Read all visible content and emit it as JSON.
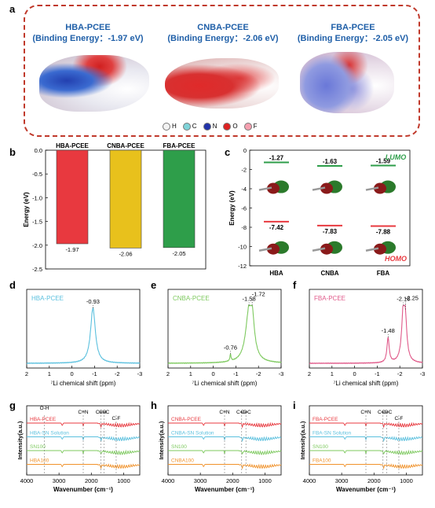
{
  "panels": {
    "a": "a",
    "b": "b",
    "c": "c",
    "d": "d",
    "e": "e",
    "f": "f",
    "g": "g",
    "h": "h",
    "i": "i"
  },
  "panel_a": {
    "molecules": [
      {
        "name": "HBA-PCEE",
        "energy": "(Binding Energy：-1.97 eV)"
      },
      {
        "name": "CNBA-PCEE",
        "energy": "(Binding Energy：-2.06 eV)"
      },
      {
        "name": "FBA-PCEE",
        "energy": "(Binding Energy：-2.05 eV)"
      }
    ],
    "legend": [
      {
        "label": "H",
        "color": "#f2f2f2"
      },
      {
        "label": "C",
        "color": "#7fd3d8"
      },
      {
        "label": "N",
        "color": "#2233aa"
      },
      {
        "label": "O",
        "color": "#dd2222"
      },
      {
        "label": "F",
        "color": "#f5a0b0"
      }
    ]
  },
  "chart_data": [
    {
      "panel": "b",
      "type": "bar",
      "categories": [
        "HBA-PCEE",
        "CNBA-PCEE",
        "FBA-PCEE"
      ],
      "values": [
        -1.97,
        -2.06,
        -2.05
      ],
      "value_labels": [
        "-1.97",
        "-2.06",
        "-2.05"
      ],
      "colors": [
        "#e8393f",
        "#e8c11c",
        "#2e9e4a"
      ],
      "ylabel": "Energy (eV)",
      "ylim": [
        -2.5,
        0
      ],
      "yticks": [
        0.0,
        -0.5,
        -1.0,
        -1.5,
        -2.0,
        -2.5
      ],
      "ytick_labels": [
        "0.0",
        "-0.5",
        "-1.0",
        "-1.5",
        "-2.0",
        "-2.5"
      ]
    },
    {
      "panel": "c",
      "type": "scatter",
      "categories": [
        "HBA",
        "CNBA",
        "FBA"
      ],
      "lumo": [
        -1.27,
        -1.63,
        -1.59
      ],
      "lumo_labels": [
        "-1.27",
        "-1.63",
        "-1.59"
      ],
      "homo": [
        -7.42,
        -7.83,
        -7.88
      ],
      "homo_labels": [
        "-7.42",
        "-7.83",
        "-7.88"
      ],
      "lumo_label": "LUMO",
      "homo_label": "HOMO",
      "lumo_color": "#2e9e4a",
      "homo_color": "#e8393f",
      "ylabel": "Energy (eV)",
      "ylim": [
        -12,
        0
      ],
      "yticks": [
        0,
        -2,
        -4,
        -6,
        -8,
        -10,
        -12
      ],
      "ytick_labels": [
        "0",
        "-2",
        "-4",
        "-6",
        "-8",
        "-10",
        "-12"
      ]
    },
    {
      "panel": "d",
      "type": "line",
      "series_label": "HBA-PCEE",
      "color": "#5bc0de",
      "xlim": [
        2,
        -3
      ],
      "xticks": [
        2,
        1,
        0,
        -1,
        -2,
        -3
      ],
      "xtick_labels": [
        "2",
        "1",
        "0",
        "-1",
        "-2",
        "-3"
      ],
      "xlabel": "⁷Li chemical shift (ppm)",
      "peaks": [
        {
          "x": -0.93,
          "h": 1.0,
          "w": 0.13
        }
      ],
      "annotations": [
        {
          "x": -0.93,
          "text": "-0.93"
        }
      ]
    },
    {
      "panel": "e",
      "type": "line",
      "series_label": "CNBA-PCEE",
      "color": "#7dc95e",
      "xlim": [
        2,
        -3
      ],
      "xticks": [
        2,
        1,
        0,
        -1,
        -2,
        -3
      ],
      "xtick_labels": [
        "2",
        "1",
        "0",
        "-1",
        "-2",
        "-3"
      ],
      "xlabel": "⁷Li chemical shift (ppm)",
      "peaks": [
        {
          "x": -1.58,
          "h": 0.85,
          "w": 0.18
        },
        {
          "x": -1.72,
          "h": 0.55,
          "w": 0.12
        },
        {
          "x": -0.76,
          "h": 0.12,
          "w": 0.03
        }
      ],
      "annotations": [
        {
          "x": -0.76,
          "text": "-0.76"
        },
        {
          "x": -1.58,
          "text": "-1.58"
        },
        {
          "x": -1.72,
          "text": "-1.72"
        }
      ]
    },
    {
      "panel": "f",
      "type": "line",
      "series_label": "FBA-PCEE",
      "color": "#e05a8a",
      "xlim": [
        2,
        -3
      ],
      "xticks": [
        2,
        1,
        0,
        -1,
        -2,
        -3
      ],
      "xtick_labels": [
        "2",
        "1",
        "0",
        "-1",
        "-2",
        "-3"
      ],
      "xlabel": "⁷Li chemical shift (ppm)",
      "peaks": [
        {
          "x": -2.16,
          "h": 0.95,
          "w": 0.09
        },
        {
          "x": -2.25,
          "h": 0.5,
          "w": 0.08
        },
        {
          "x": -1.48,
          "h": 0.45,
          "w": 0.06
        }
      ],
      "annotations": [
        {
          "x": -1.48,
          "text": "-1.48"
        },
        {
          "x": -2.16,
          "text": "-2.16"
        },
        {
          "x": -2.25,
          "text": "-2.25"
        }
      ]
    },
    {
      "panel": "g",
      "type": "line",
      "series": [
        {
          "name": "HBA-PCEE",
          "color": "#e8393f"
        },
        {
          "name": "HBA-SN Solution",
          "color": "#5bc0de"
        },
        {
          "name": "SN100",
          "color": "#7dc95e"
        },
        {
          "name": "HBA100",
          "color": "#f0922b"
        }
      ],
      "annotations": [
        {
          "text": "O-H",
          "x": 3450
        },
        {
          "text": "C≡N",
          "x": 2250
        },
        {
          "text": "C=O",
          "x": 1700
        },
        {
          "text": "C=C",
          "x": 1600
        },
        {
          "text": "C-F",
          "x": 1230
        }
      ],
      "xlim": [
        4000,
        500
      ],
      "xticks": [
        4000,
        3000,
        2000,
        1000
      ],
      "xtick_labels": [
        "4000",
        "3000",
        "2000",
        "1000"
      ],
      "xlabel": "Wavenumber (cm⁻¹)",
      "ylabel": "Intensity(a.u.)"
    },
    {
      "panel": "h",
      "type": "line",
      "series": [
        {
          "name": "CNBA-PCEE",
          "color": "#e8393f"
        },
        {
          "name": "CNBA-SN Solution",
          "color": "#5bc0de"
        },
        {
          "name": "SN100",
          "color": "#7dc95e"
        },
        {
          "name": "CNBA100",
          "color": "#f0922b"
        }
      ],
      "annotations": [
        {
          "text": "C≡N",
          "x": 2250
        },
        {
          "text": "C=O",
          "x": 1720
        },
        {
          "text": "C=C",
          "x": 1590
        }
      ],
      "xlim": [
        4000,
        500
      ],
      "xticks": [
        4000,
        3000,
        2000,
        1000
      ],
      "xtick_labels": [
        "4000",
        "3000",
        "2000",
        "1000"
      ],
      "xlabel": "Wavenumber (cm⁻¹)",
      "ylabel": "Intensity(a.u.)"
    },
    {
      "panel": "i",
      "type": "line",
      "series": [
        {
          "name": "FBA-PCEE",
          "color": "#e8393f"
        },
        {
          "name": "FBA-SN Solution",
          "color": "#5bc0de"
        },
        {
          "name": "SN100",
          "color": "#7dc95e"
        },
        {
          "name": "FBA100",
          "color": "#f0922b"
        }
      ],
      "annotations": [
        {
          "text": "C≡N",
          "x": 2250
        },
        {
          "text": "C=O",
          "x": 1720
        },
        {
          "text": "C=C",
          "x": 1600
        },
        {
          "text": "C-F",
          "x": 1230
        }
      ],
      "xlim": [
        4000,
        500
      ],
      "xticks": [
        4000,
        3000,
        2000,
        1000
      ],
      "xtick_labels": [
        "4000",
        "3000",
        "2000",
        "1000"
      ],
      "xlabel": "Wavenumber (cm⁻¹)",
      "ylabel": "Intensity(a.u.)"
    }
  ]
}
